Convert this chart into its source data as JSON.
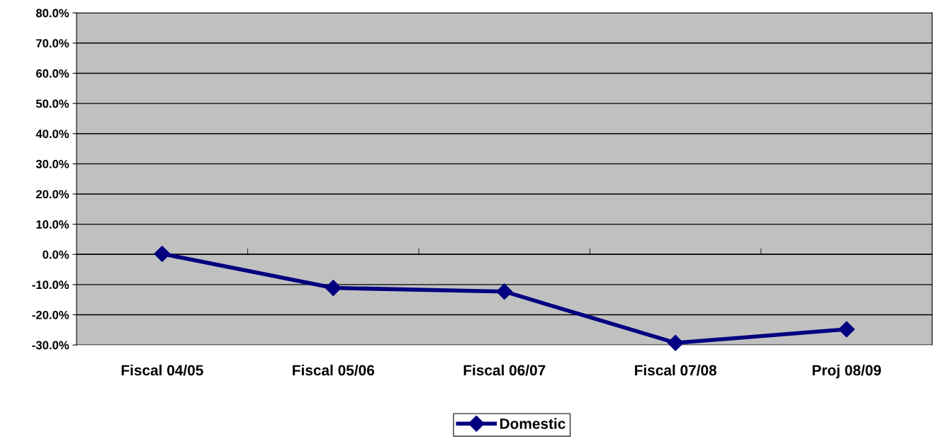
{
  "chart_data": {
    "type": "line",
    "categories": [
      "Fiscal 04/05",
      "Fiscal 05/06",
      "Fiscal 06/07",
      "Fiscal 07/08",
      "Proj 08/09"
    ],
    "series": [
      {
        "name": "Domestic",
        "color": "#000080",
        "values": [
          0.2,
          -11.1,
          -12.3,
          -29.3,
          -24.8
        ]
      }
    ],
    "ylim": [
      -30,
      80
    ],
    "yticks": [
      {
        "value": -30,
        "label": "-30.0%"
      },
      {
        "value": -20,
        "label": "-20.0%"
      },
      {
        "value": -10,
        "label": "-10.0%"
      },
      {
        "value": 0,
        "label": "0.0%"
      },
      {
        "value": 10,
        "label": "10.0%"
      },
      {
        "value": 20,
        "label": "20.0%"
      },
      {
        "value": 30,
        "label": "30.0%"
      },
      {
        "value": 40,
        "label": "40.0%"
      },
      {
        "value": 50,
        "label": "50.0%"
      },
      {
        "value": 60,
        "label": "60.0%"
      },
      {
        "value": 70,
        "label": "70.0%"
      },
      {
        "value": 80,
        "label": "80.0%"
      }
    ],
    "grid": "y",
    "legend": "bottom",
    "marker": "diamond",
    "line_style": "solid"
  }
}
